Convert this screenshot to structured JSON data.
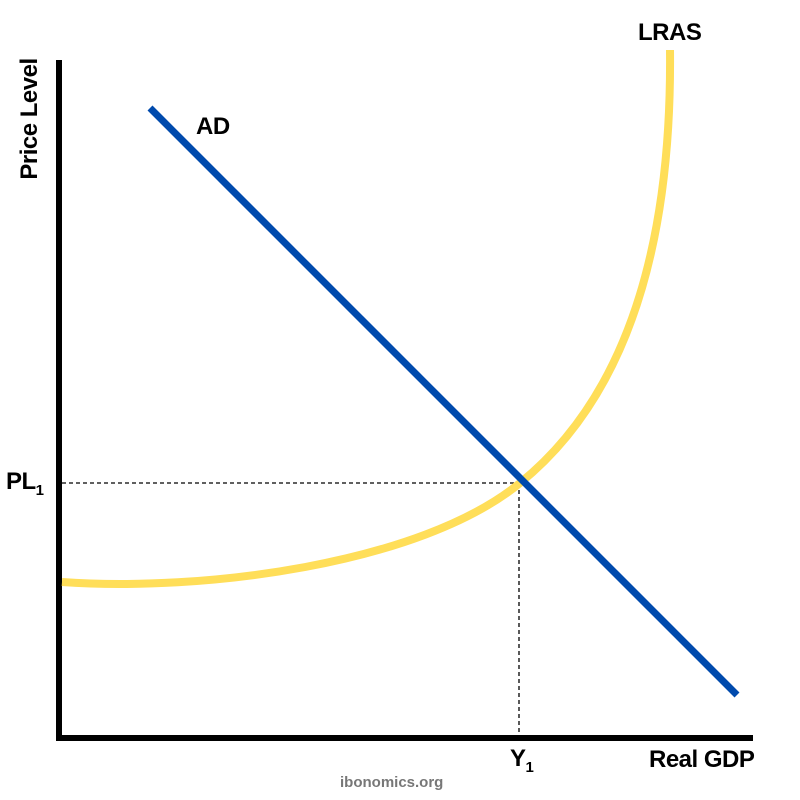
{
  "axes": {
    "y_label": "Price Level",
    "x_label": "Real GDP"
  },
  "curves": {
    "ad": {
      "label": "AD",
      "color": "#004AAD"
    },
    "lras": {
      "label": "LRAS",
      "color": "#FFDE59"
    }
  },
  "equilibrium": {
    "price_label": "PL",
    "price_sub": "1",
    "output_label": "Y",
    "output_sub": "1"
  },
  "watermark": "ibonomics.org"
}
